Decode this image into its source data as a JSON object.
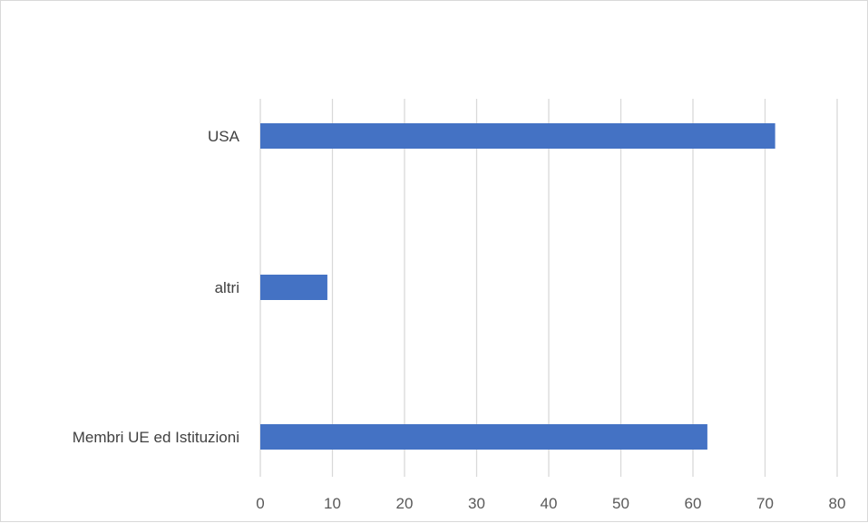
{
  "chart_data": {
    "type": "bar",
    "orientation": "horizontal",
    "categories": [
      "USA",
      "altri",
      "Membri UE ed Istituzioni"
    ],
    "values": [
      71.4,
      9.3,
      62
    ],
    "xlim": [
      0,
      80
    ],
    "x_ticks": [
      0,
      10,
      20,
      30,
      40,
      50,
      60,
      70,
      80
    ],
    "grid": "vertical",
    "legend": "none",
    "bar_color": "#4472C4",
    "grid_color": "#d9d9d9"
  }
}
